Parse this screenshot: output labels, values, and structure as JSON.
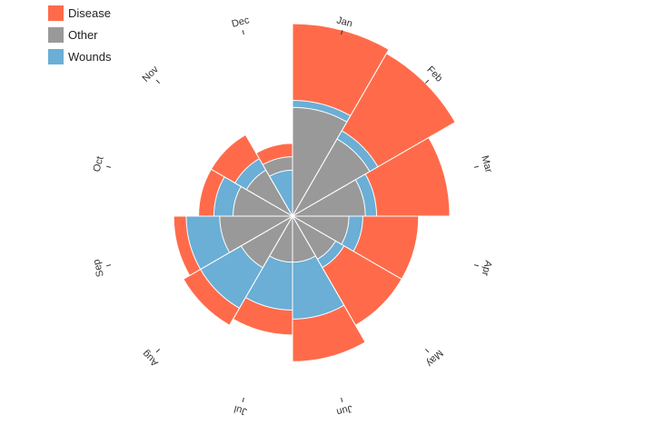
{
  "chart_data": {
    "type": "polar-area",
    "legend": [
      {
        "name": "Disease",
        "color": "#ff6b4a"
      },
      {
        "name": "Other",
        "color": "#999999"
      },
      {
        "name": "Wounds",
        "color": "#6baed6"
      }
    ],
    "months": [
      "Jan",
      "Feb",
      "Mar",
      "Apr",
      "May",
      "Jun",
      "Jul",
      "Aug",
      "Sep",
      "Oct",
      "Nov",
      "Dec"
    ],
    "series": [
      {
        "name": "Disease",
        "values": [
          210,
          200,
          140,
          90,
          90,
          120,
          80,
          90,
          80,
          50,
          50,
          30
        ]
      },
      {
        "name": "Other",
        "values": [
          67,
          45,
          30,
          18,
          14,
          12,
          12,
          20,
          30,
          20,
          16,
          20
        ]
      },
      {
        "name": "Wounds",
        "values": [
          76,
          55,
          40,
          28,
          20,
          60,
          50,
          64,
          64,
          35,
          25,
          12
        ]
      }
    ],
    "legend_position": "top-left"
  }
}
